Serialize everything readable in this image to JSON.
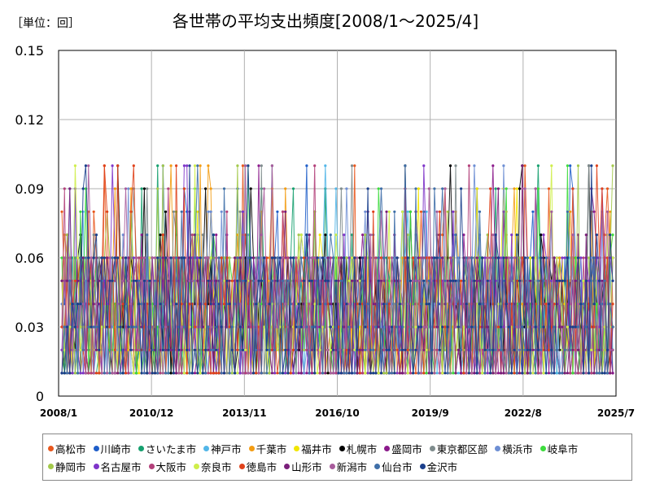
{
  "unit_label": "［単位：回］",
  "chart_data": {
    "type": "line",
    "title": "各世帯の平均支出頻度[2008/1～2025/4]",
    "xlabel": "",
    "ylabel": "",
    "x_start": "2008/1",
    "x_end": "2025/7",
    "x_tick_labels": [
      "2008/1",
      "2010/12",
      "2013/11",
      "2016/10",
      "2019/9",
      "2022/8",
      "2025/7"
    ],
    "y_tick_labels": [
      "0",
      "0.03",
      "0.06",
      "0.09",
      "0.12",
      "0.15"
    ],
    "ylim": [
      0,
      0.15
    ],
    "grid": true,
    "legend_position": "bottom",
    "series": [
      {
        "name": "高松市",
        "color": "#e8571d"
      },
      {
        "name": "川崎市",
        "color": "#1f5ec9"
      },
      {
        "name": "さいたま市",
        "color": "#16a06f"
      },
      {
        "name": "神戸市",
        "color": "#52b6e8"
      },
      {
        "name": "千葉市",
        "color": "#f39c12"
      },
      {
        "name": "福井市",
        "color": "#f2e600"
      },
      {
        "name": "札幌市",
        "color": "#000000"
      },
      {
        "name": "盛岡市",
        "color": "#8b1a8b"
      },
      {
        "name": "東京都区部",
        "color": "#7f8c8d"
      },
      {
        "name": "横浜市",
        "color": "#6e8fd4"
      },
      {
        "name": "岐阜市",
        "color": "#3ddc3d"
      },
      {
        "name": "静岡市",
        "color": "#a3c94a"
      },
      {
        "name": "名古屋市",
        "color": "#7e34c9"
      },
      {
        "name": "大阪市",
        "color": "#b3407a"
      },
      {
        "name": "奈良市",
        "color": "#cfee4a"
      },
      {
        "name": "徳島市",
        "color": "#e0421b"
      },
      {
        "name": "山形市",
        "color": "#7a1f7a"
      },
      {
        "name": "新潟市",
        "color": "#a85c9c"
      },
      {
        "name": "仙台市",
        "color": "#3f6fa8"
      },
      {
        "name": "金沢市",
        "color": "#1a3f8c"
      }
    ]
  }
}
